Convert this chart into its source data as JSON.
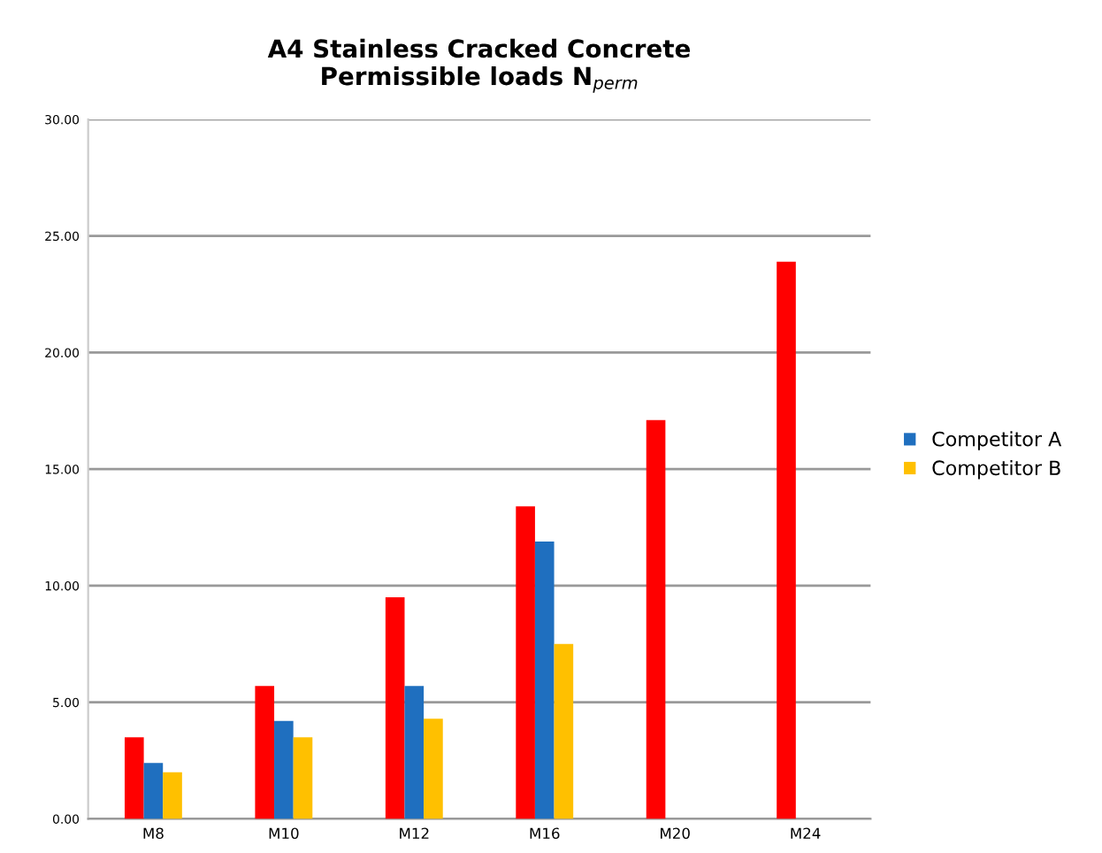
{
  "chart_data": {
    "type": "bar",
    "title": "A4 Stainless Cracked Concrete\nPermissible loads N$_{perm}$",
    "categories": [
      "M8",
      "M10",
      "M12",
      "M16",
      "M20",
      "M24"
    ],
    "series": [
      {
        "color": "#ff0000",
        "values": [
          3.5,
          5.7,
          9.5,
          13.4,
          17.1,
          23.9
        ]
      },
      {
        "name": "Competitor A",
        "color": "#1f6fbf",
        "values": [
          2.4,
          4.2,
          5.7,
          11.9,
          null,
          null
        ]
      },
      {
        "name": "Competitor B",
        "color": "#ffc000",
        "values": [
          2.0,
          3.5,
          4.3,
          7.5,
          null,
          null
        ]
      }
    ],
    "ylim": [
      0,
      30
    ],
    "yticks": [
      {
        "value": 0,
        "label": "0.00"
      },
      {
        "value": 5,
        "label": "5.00"
      },
      {
        "value": 10,
        "label": "10.00"
      },
      {
        "value": 15,
        "label": "15.00"
      },
      {
        "value": 20,
        "label": "20.00"
      },
      {
        "value": 25,
        "label": "25.00"
      },
      {
        "value": 30,
        "label": "30.00"
      }
    ],
    "grid": "y",
    "legend": "right"
  }
}
